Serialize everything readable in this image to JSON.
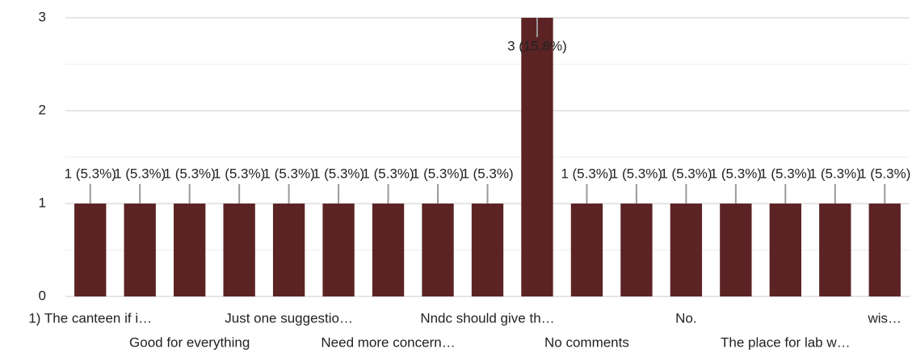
{
  "chart_data": {
    "type": "bar",
    "categories": [
      "1) The canteen if i…",
      null,
      "Good for everything",
      null,
      "Just one suggestio…",
      null,
      "Need more concern…",
      null,
      "Nndc should give th…",
      null,
      "No comments",
      null,
      "No.",
      null,
      "The place for lab w…",
      null,
      "wis…"
    ],
    "values": [
      1,
      1,
      1,
      1,
      1,
      1,
      1,
      1,
      1,
      3,
      1,
      1,
      1,
      1,
      1,
      1,
      1
    ],
    "value_labels": [
      "1 (5.3%)",
      "1 (5.3%)",
      "1 (5.3%)",
      "1 (5.3%)",
      "1 (5.3%)",
      "1 (5.3%)",
      "1 (5.3%)",
      "1 (5.3%)",
      "1 (5.3%)",
      "3 (15.8%)",
      "1 (5.3%)",
      "1 (5.3%)",
      "1 (5.3%)",
      "1 (5.3%)",
      "1 (5.3%)",
      "1 (5.3%)",
      "1 (5.3%)"
    ],
    "color": "#5c2324",
    "ylim": [
      0,
      3
    ],
    "yticks": [
      0,
      1,
      2,
      3
    ],
    "grid": true
  }
}
